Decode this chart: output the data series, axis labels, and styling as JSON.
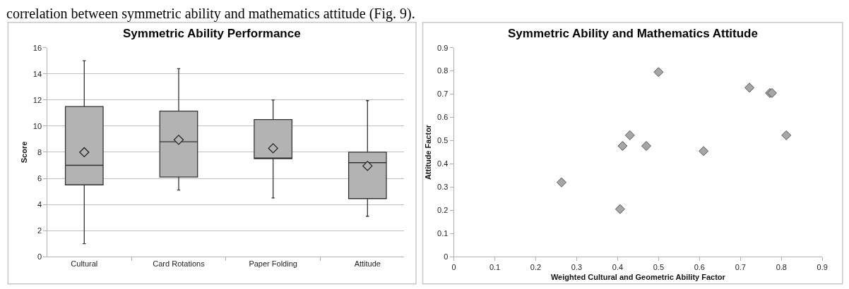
{
  "chart_data": [
    {
      "type": "box",
      "title": "Symmetric Ability Performance",
      "ylabel": "Score",
      "annotations": [
        "correlation between symmetric ability and mathematics attitude (Fig. 9)."
      ],
      "categories": [
        "Cultural",
        "Card Rotations",
        "Paper Folding",
        "Attitude"
      ],
      "boxes": [
        {
          "low": 1,
          "q1": 5.5,
          "median": 7,
          "q3": 11.5,
          "high": 15,
          "mean": 8
        },
        {
          "low": 5.1,
          "q1": 6.1,
          "median": 8.8,
          "q3": 11.15,
          "high": 14.4,
          "mean": 8.95
        },
        {
          "low": 4.5,
          "q1": 7.5,
          "median": 7.5,
          "q3": 10.5,
          "high": 12,
          "mean": 8.3
        },
        {
          "low": 3.1,
          "q1": 4.45,
          "median": 7.2,
          "q3": 8,
          "high": 11.95,
          "mean": 6.95
        }
      ],
      "color": "#b3b3b3",
      "ylim": [
        0,
        16
      ],
      "yticks": [
        0,
        2,
        4,
        6,
        8,
        10,
        12,
        14,
        16
      ],
      "grid": "y"
    },
    {
      "type": "scatter",
      "title": "Symmetric Ability and Mathematics Attitude",
      "xlabel": "Weighted Cultural and Geometric Ability Factor",
      "ylabel": "Attitude Factor",
      "x": [
        0.263,
        0.406,
        0.412,
        0.43,
        0.47,
        0.5,
        0.61,
        0.722,
        0.772,
        0.777,
        0.812
      ],
      "values": [
        0.32,
        0.205,
        0.477,
        0.523,
        0.477,
        0.795,
        0.455,
        0.728,
        0.705,
        0.705,
        0.523
      ],
      "color": "#a6a6a6",
      "marker": "diamond",
      "xlim": [
        0,
        0.9
      ],
      "xticks": [
        0,
        0.1,
        0.2,
        0.3,
        0.4,
        0.5,
        0.6,
        0.7,
        0.8,
        0.9
      ],
      "ylim": [
        0,
        0.9
      ],
      "yticks": [
        0,
        0.1,
        0.2,
        0.3,
        0.4,
        0.5,
        0.6,
        0.7,
        0.8,
        0.9
      ],
      "grid": false
    }
  ]
}
